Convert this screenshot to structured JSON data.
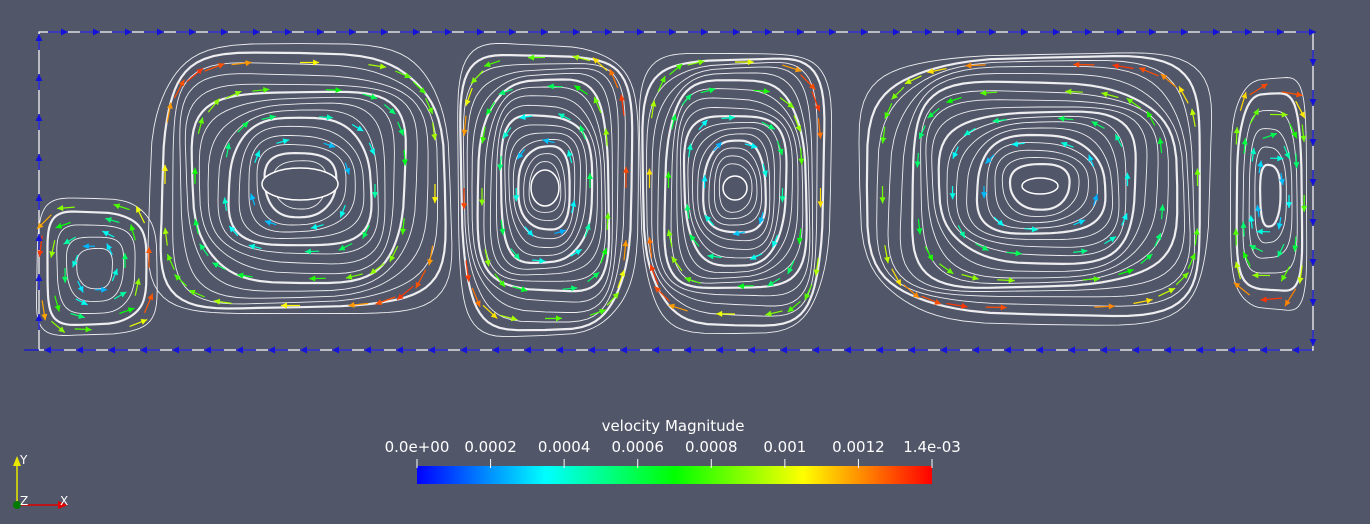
{
  "colorbar": {
    "title": "velocity Magnitude",
    "min": 0.0,
    "max": 0.0014,
    "ticks": [
      {
        "label": "0.0e+00",
        "value": 0.0
      },
      {
        "label": "0.0002",
        "value": 0.0002
      },
      {
        "label": "0.0004",
        "value": 0.0004
      },
      {
        "label": "0.0006",
        "value": 0.0006
      },
      {
        "label": "0.0008",
        "value": 0.0008
      },
      {
        "label": "0.001",
        "value": 0.001
      },
      {
        "label": "0.0012",
        "value": 0.0012
      },
      {
        "label": "1.4e-03",
        "value": 0.0014
      }
    ],
    "colormap": [
      "#0000ff",
      "#00ffff",
      "#00ff00",
      "#ffff00",
      "#ff0000"
    ]
  },
  "axes": {
    "y_label": "Y",
    "z_label": "Z",
    "x_label": "X",
    "y_color": "#e8e800",
    "x_color": "#e00000",
    "z_color": "#007a00"
  },
  "colors": {
    "background": "#525669",
    "streamline": "#ffffff"
  },
  "vortices": [
    {
      "name": "large-left-vortex"
    },
    {
      "name": "corner-left-vortex"
    },
    {
      "name": "center-left-vortex"
    },
    {
      "name": "center-right-vortex"
    },
    {
      "name": "large-right-vortex"
    },
    {
      "name": "right-edge-vortex"
    }
  ]
}
